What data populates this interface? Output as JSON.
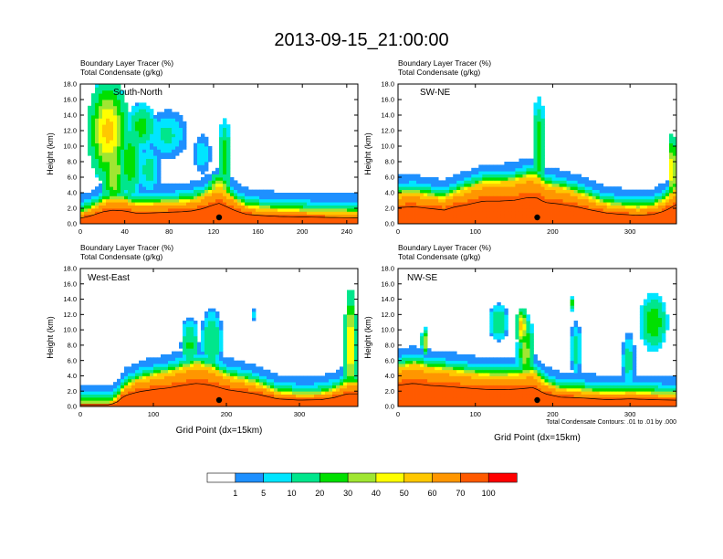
{
  "title": "2013-09-15_21:00:00",
  "chart_data": [
    {
      "type": "heatmap",
      "panel_position": "top-left",
      "inset_label": "South-North",
      "header_line1": "Boundary Layer Tracer   (%)",
      "header_line2": "Total Condensate   (g/kg)",
      "ylabel": "Height (km)",
      "xlabel": "",
      "xlim": [
        0,
        250
      ],
      "ylim": [
        0,
        18
      ],
      "x_ticks": [
        "0",
        "40",
        "80",
        "120",
        "160",
        "200",
        "240"
      ],
      "y_ticks": [
        "0.0",
        "2.0",
        "4.0",
        "6.0",
        "8.0",
        "10.0",
        "12.0",
        "14.0",
        "16.0",
        "18.0"
      ],
      "center_marker_x": 125,
      "surface_layer_top_km": [
        [
          0,
          1.3
        ],
        [
          10,
          1.9
        ],
        [
          20,
          2.8
        ],
        [
          30,
          3.2
        ],
        [
          40,
          3.0
        ],
        [
          50,
          2.5
        ],
        [
          60,
          2.5
        ],
        [
          70,
          2.6
        ],
        [
          80,
          2.7
        ],
        [
          90,
          2.8
        ],
        [
          100,
          3.0
        ],
        [
          110,
          3.5
        ],
        [
          115,
          4.0
        ],
        [
          120,
          4.4
        ],
        [
          125,
          4.8
        ],
        [
          130,
          4.2
        ],
        [
          140,
          3.0
        ],
        [
          150,
          2.2
        ],
        [
          165,
          1.9
        ],
        [
          180,
          1.7
        ],
        [
          200,
          1.6
        ],
        [
          220,
          1.5
        ],
        [
          250,
          1.4
        ]
      ],
      "tracer_plumes": [
        {
          "x": 25,
          "z": 12,
          "width": 30,
          "depth": 11,
          "peak": 55
        },
        {
          "x": 55,
          "z": 12.5,
          "width": 22,
          "depth": 5,
          "peak": 25
        },
        {
          "x": 78,
          "z": 11.5,
          "width": 30,
          "depth": 5,
          "peak": 12
        },
        {
          "x": 30,
          "z": 7,
          "width": 18,
          "depth": 10,
          "peak": 40
        },
        {
          "x": 45,
          "z": 8,
          "width": 18,
          "depth": 8,
          "peak": 30
        },
        {
          "x": 62,
          "z": 7,
          "width": 16,
          "depth": 5,
          "peak": 15
        },
        {
          "x": 110,
          "z": 9,
          "width": 12,
          "depth": 4,
          "peak": 10
        },
        {
          "x": 130,
          "z": 8.5,
          "width": 10,
          "depth": 8,
          "peak": 28
        },
        {
          "x": 125,
          "z": 4,
          "width": 18,
          "depth": 4,
          "peak": 60
        }
      ]
    },
    {
      "type": "heatmap",
      "panel_position": "top-right",
      "inset_label": "SW-NE",
      "header_line1": "Boundary Layer Tracer   (%)",
      "header_line2": "Total Condensate   (g/kg)",
      "ylabel": "Height (km)",
      "xlabel": "",
      "xlim": [
        0,
        360
      ],
      "ylim": [
        0,
        18
      ],
      "x_ticks": [
        "0",
        "100",
        "200",
        "300"
      ],
      "y_ticks": [
        "0.0",
        "2.0",
        "4.0",
        "6.0",
        "8.0",
        "10.0",
        "12.0",
        "14.0",
        "16.0",
        "18.0"
      ],
      "center_marker_x": 180,
      "surface_layer_top_km": [
        [
          0,
          3.8
        ],
        [
          20,
          4.0
        ],
        [
          40,
          3.6
        ],
        [
          60,
          3.2
        ],
        [
          70,
          3.8
        ],
        [
          90,
          4.5
        ],
        [
          110,
          5.3
        ],
        [
          130,
          5.3
        ],
        [
          150,
          5.5
        ],
        [
          170,
          6.2
        ],
        [
          180,
          6.0
        ],
        [
          190,
          5.0
        ],
        [
          210,
          4.6
        ],
        [
          230,
          4.0
        ],
        [
          250,
          3.2
        ],
        [
          270,
          2.5
        ],
        [
          290,
          2.2
        ],
        [
          310,
          2.0
        ],
        [
          330,
          2.2
        ],
        [
          345,
          3.0
        ],
        [
          360,
          4.5
        ]
      ],
      "tracer_plumes": [
        {
          "x": 182,
          "z": 10,
          "width": 14,
          "depth": 10,
          "peak": 30
        },
        {
          "x": 355,
          "z": 7,
          "width": 8,
          "depth": 8,
          "peak": 60
        }
      ]
    },
    {
      "type": "heatmap",
      "panel_position": "bottom-left",
      "inset_label": "West-East",
      "header_line1": "Boundary Layer Tracer   (%)",
      "header_line2": "Total Condensate   (g/kg)",
      "ylabel": "Height (km)",
      "xlabel": "Grid Point (dx=15km)",
      "xlim": [
        0,
        380
      ],
      "ylim": [
        0,
        18
      ],
      "x_ticks": [
        "0",
        "100",
        "200",
        "300"
      ],
      "y_ticks": [
        "0.0",
        "2.0",
        "4.0",
        "6.0",
        "8.0",
        "10.0",
        "12.0",
        "14.0",
        "16.0",
        "18.0"
      ],
      "center_marker_x": 190,
      "surface_layer_top_km": [
        [
          0,
          0.4
        ],
        [
          40,
          0.4
        ],
        [
          50,
          1.0
        ],
        [
          60,
          2.5
        ],
        [
          80,
          3.5
        ],
        [
          100,
          4.0
        ],
        [
          120,
          4.4
        ],
        [
          140,
          5.0
        ],
        [
          160,
          5.5
        ],
        [
          180,
          5.0
        ],
        [
          200,
          4.0
        ],
        [
          220,
          3.5
        ],
        [
          240,
          3.0
        ],
        [
          270,
          1.8
        ],
        [
          300,
          1.5
        ],
        [
          330,
          1.6
        ],
        [
          350,
          2.2
        ],
        [
          365,
          3.0
        ],
        [
          380,
          3.0
        ]
      ],
      "tracer_plumes": [
        {
          "x": 150,
          "z": 8,
          "width": 20,
          "depth": 6,
          "peak": 22
        },
        {
          "x": 180,
          "z": 8.5,
          "width": 24,
          "depth": 7,
          "peak": 20
        },
        {
          "x": 370,
          "z": 8,
          "width": 14,
          "depth": 12,
          "peak": 55
        },
        {
          "x": 238,
          "z": 12,
          "width": 6,
          "depth": 1,
          "peak": 8
        }
      ]
    },
    {
      "type": "heatmap",
      "panel_position": "bottom-right",
      "inset_label": "NW-SE",
      "header_line1": "Boundary Layer Tracer   (%)",
      "header_line2": "Total Condensate   (g/kg)",
      "ylabel": "Height (km)",
      "xlabel": "Grid Point (dx=15km)",
      "contour_note": "Total Condensate Contours: .01 to .01 by .000",
      "xlim": [
        0,
        360
      ],
      "ylim": [
        0,
        18
      ],
      "x_ticks": [
        "0",
        "100",
        "200",
        "300"
      ],
      "y_ticks": [
        "0.0",
        "2.0",
        "4.0",
        "6.0",
        "8.0",
        "10.0",
        "12.0",
        "14.0",
        "16.0",
        "18.0"
      ],
      "center_marker_x": 180,
      "surface_layer_top_km": [
        [
          0,
          5.0
        ],
        [
          20,
          5.5
        ],
        [
          40,
          5.0
        ],
        [
          60,
          4.8
        ],
        [
          80,
          4.5
        ],
        [
          100,
          4.2
        ],
        [
          120,
          4.0
        ],
        [
          140,
          4.0
        ],
        [
          160,
          4.2
        ],
        [
          175,
          4.5
        ],
        [
          190,
          3.0
        ],
        [
          210,
          2.2
        ],
        [
          240,
          2.0
        ],
        [
          270,
          1.6
        ],
        [
          300,
          1.8
        ],
        [
          330,
          1.6
        ],
        [
          360,
          1.5
        ]
      ],
      "tracer_plumes": [
        {
          "x": 35,
          "z": 8.5,
          "width": 8,
          "depth": 3,
          "peak": 40
        },
        {
          "x": 160,
          "z": 10.5,
          "width": 12,
          "depth": 4,
          "peak": 60
        },
        {
          "x": 130,
          "z": 11,
          "width": 20,
          "depth": 4,
          "peak": 20
        },
        {
          "x": 165,
          "z": 7,
          "width": 18,
          "depth": 8,
          "peak": 35
        },
        {
          "x": 230,
          "z": 7.5,
          "width": 12,
          "depth": 6,
          "peak": 15
        },
        {
          "x": 225,
          "z": 13.5,
          "width": 6,
          "depth": 1.5,
          "peak": 25
        },
        {
          "x": 330,
          "z": 11,
          "width": 30,
          "depth": 6,
          "peak": 30
        },
        {
          "x": 298,
          "z": 6,
          "width": 14,
          "depth": 6,
          "peak": 15
        }
      ]
    }
  ],
  "colorbar": {
    "labels": [
      "1",
      "5",
      "10",
      "20",
      "30",
      "40",
      "50",
      "60",
      "70",
      "100"
    ],
    "thresholds": [
      0,
      1,
      5,
      10,
      20,
      30,
      40,
      50,
      60,
      70,
      100
    ],
    "colors": [
      "#ffffff",
      "#1e90ff",
      "#00e5ff",
      "#00e68c",
      "#00e000",
      "#a0e632",
      "#ffff00",
      "#ffc800",
      "#ff9600",
      "#ff5a00",
      "#ff0000"
    ]
  }
}
